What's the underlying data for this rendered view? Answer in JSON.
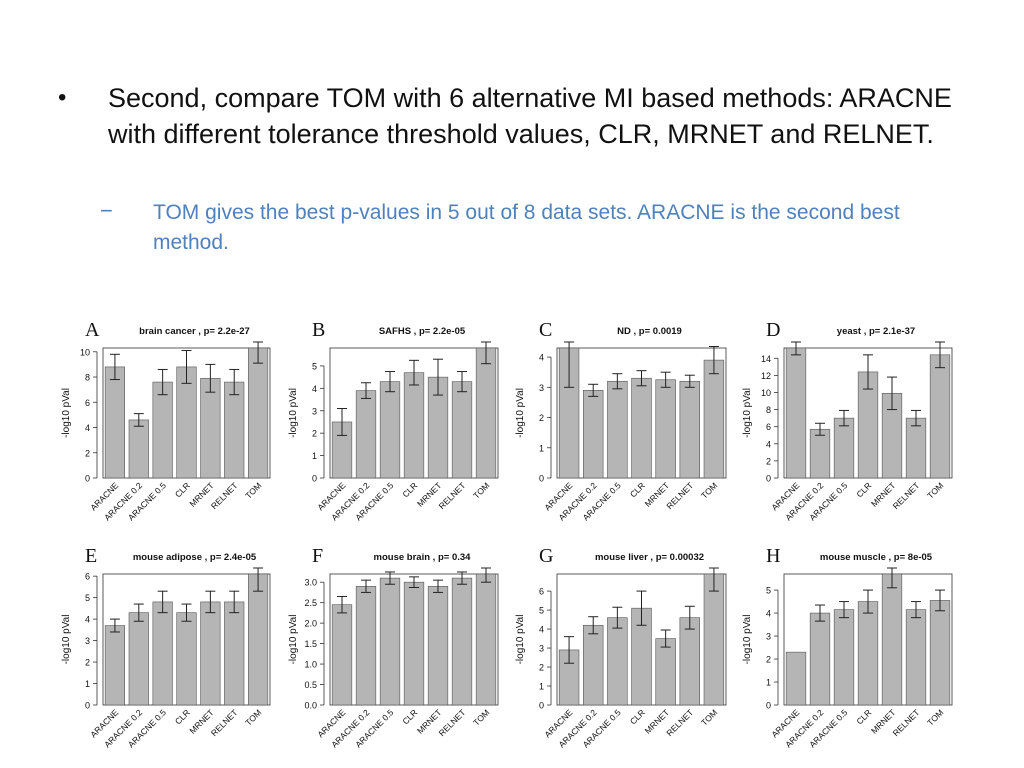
{
  "slide": {
    "bullet_symbol": "•",
    "main_text": "Second, compare TOM with 6 alternative MI based methods: ARACNE with different tolerance threshold values, CLR, MRNET and RELNET.",
    "sub_symbol": "−",
    "sub_text": "TOM gives the best p-values in 5 out of 8 data sets. ARACNE is the second best method."
  },
  "colors": {
    "bar": "#b5b5b5",
    "bar_stroke": "#555555",
    "sub_text": "#4f81bd"
  },
  "chart_data": [
    {
      "type": "bar",
      "letter": "A",
      "title": "brain cancer ,  p= 2.2e-27",
      "ylabel": "-log10 pVal",
      "categories": [
        "ARACNE",
        "ARACNE 0.2",
        "ARACNE 0.5",
        "CLR",
        "MRNET",
        "RELNET",
        "TOM"
      ],
      "values": [
        8.8,
        4.6,
        7.6,
        8.8,
        7.9,
        7.6,
        10.3
      ],
      "errors": [
        1.0,
        0.5,
        1.0,
        1.3,
        1.1,
        1.0,
        1.2
      ],
      "ylim": [
        0,
        10.3
      ],
      "yticks": [
        0,
        2,
        4,
        6,
        8,
        10
      ],
      "ytick_labels": [
        "0",
        "2",
        "4",
        "6",
        "8",
        "10"
      ]
    },
    {
      "type": "bar",
      "letter": "B",
      "title": "SAFHS ,  p= 2.2e-05",
      "ylabel": "-log10 pVal",
      "categories": [
        "ARACNE",
        "ARACNE 0.2",
        "ARACNE 0.5",
        "CLR",
        "MRNET",
        "RELNET",
        "TOM"
      ],
      "values": [
        2.5,
        3.9,
        4.3,
        4.7,
        4.5,
        4.3,
        5.8
      ],
      "errors": [
        0.6,
        0.35,
        0.45,
        0.55,
        0.8,
        0.45,
        0.7
      ],
      "ylim": [
        0,
        5.8
      ],
      "yticks": [
        0,
        1,
        2,
        3,
        4,
        5
      ],
      "ytick_labels": [
        "0",
        "1",
        "2",
        "3",
        "4",
        "5"
      ]
    },
    {
      "type": "bar",
      "letter": "C",
      "title": "ND ,  p= 0.0019",
      "ylabel": "-log10 pVal",
      "categories": [
        "ARACNE",
        "ARACNE 0.2",
        "ARACNE 0.5",
        "CLR",
        "MRNET",
        "RELNET",
        "TOM"
      ],
      "values": [
        4.3,
        2.9,
        3.2,
        3.3,
        3.25,
        3.2,
        3.9
      ],
      "errors": [
        1.3,
        0.2,
        0.25,
        0.25,
        0.25,
        0.2,
        0.45
      ],
      "ylim": [
        0,
        4.3
      ],
      "yticks": [
        0,
        1,
        2,
        3,
        4
      ],
      "ytick_labels": [
        "0",
        "1",
        "2",
        "3",
        "4"
      ]
    },
    {
      "type": "bar",
      "letter": "D",
      "title": "yeast ,  p= 2.1e-37",
      "ylabel": "-log10 pVal",
      "categories": [
        "ARACNE",
        "ARACNE 0.2",
        "ARACNE 0.5",
        "CLR",
        "MRNET",
        "RELNET",
        "TOM"
      ],
      "values": [
        15.2,
        5.7,
        7.0,
        12.4,
        9.9,
        7.0,
        14.4
      ],
      "errors": [
        0.8,
        0.7,
        0.9,
        2.0,
        1.9,
        0.9,
        1.5
      ],
      "ylim": [
        0,
        15.2
      ],
      "yticks": [
        0,
        2,
        4,
        6,
        8,
        10,
        12,
        14
      ],
      "ytick_labels": [
        "0",
        "2",
        "4",
        "6",
        "8",
        "10",
        "12",
        "14"
      ]
    },
    {
      "type": "bar",
      "letter": "E",
      "title": "mouse adipose ,  p= 2.4e-05",
      "ylabel": "-log10 pVal",
      "categories": [
        "ARACNE",
        "ARACNE 0.2",
        "ARACNE 0.5",
        "CLR",
        "MRNET",
        "RELNET",
        "TOM"
      ],
      "values": [
        3.7,
        4.3,
        4.8,
        4.3,
        4.8,
        4.8,
        6.1
      ],
      "errors": [
        0.3,
        0.4,
        0.5,
        0.4,
        0.5,
        0.5,
        0.8
      ],
      "ylim": [
        0,
        6.1
      ],
      "yticks": [
        0,
        1,
        2,
        3,
        4,
        5,
        6
      ],
      "ytick_labels": [
        "0",
        "1",
        "2",
        "3",
        "4",
        "5",
        "6"
      ]
    },
    {
      "type": "bar",
      "letter": "F",
      "title": "mouse brain ,  p= 0.34",
      "ylabel": "-log10 pVal",
      "categories": [
        "ARACNE",
        "ARACNE 0.2",
        "ARACNE 0.5",
        "CLR",
        "MRNET",
        "RELNET",
        "TOM"
      ],
      "values": [
        2.45,
        2.9,
        3.1,
        3.0,
        2.9,
        3.1,
        3.2
      ],
      "errors": [
        0.2,
        0.15,
        0.15,
        0.13,
        0.15,
        0.15,
        0.2
      ],
      "ylim": [
        0,
        3.2
      ],
      "yticks": [
        0,
        0.5,
        1.0,
        1.5,
        2.0,
        2.5,
        3.0
      ],
      "ytick_labels": [
        "0.0",
        "0.5",
        "1.0",
        "1.5",
        "2.0",
        "2.5",
        "3.0"
      ]
    },
    {
      "type": "bar",
      "letter": "G",
      "title": "mouse liver ,  p= 0.00032",
      "ylabel": "-log10 pVal",
      "categories": [
        "ARACNE",
        "ARACNE 0.2",
        "ARACNE 0.5",
        "CLR",
        "MRNET",
        "RELNET",
        "TOM"
      ],
      "values": [
        2.9,
        4.2,
        4.6,
        5.1,
        3.5,
        4.6,
        6.9
      ],
      "errors": [
        0.7,
        0.45,
        0.55,
        0.9,
        0.45,
        0.6,
        0.9
      ],
      "ylim": [
        0,
        6.9
      ],
      "yticks": [
        0,
        1,
        2,
        3,
        4,
        5,
        6
      ],
      "ytick_labels": [
        "0",
        "1",
        "2",
        "3",
        "4",
        "5",
        "6"
      ]
    },
    {
      "type": "bar",
      "letter": "H",
      "title": "mouse muscle ,  p= 8e-05",
      "ylabel": "-log10 pVal",
      "categories": [
        "ARACNE",
        "ARACNE 0.2",
        "ARACNE 0.5",
        "CLR",
        "MRNET",
        "RELNET",
        "TOM"
      ],
      "values": [
        2.3,
        4.0,
        4.15,
        4.5,
        5.7,
        4.15,
        4.55
      ],
      "errors": [
        0,
        0.35,
        0.35,
        0.5,
        0.6,
        0.35,
        0.45
      ],
      "ylim": [
        0,
        5.7
      ],
      "yticks": [
        0,
        1,
        2,
        3,
        4,
        5
      ],
      "ytick_labels": [
        "0",
        "1",
        "2",
        "3",
        "4",
        "5"
      ]
    }
  ]
}
